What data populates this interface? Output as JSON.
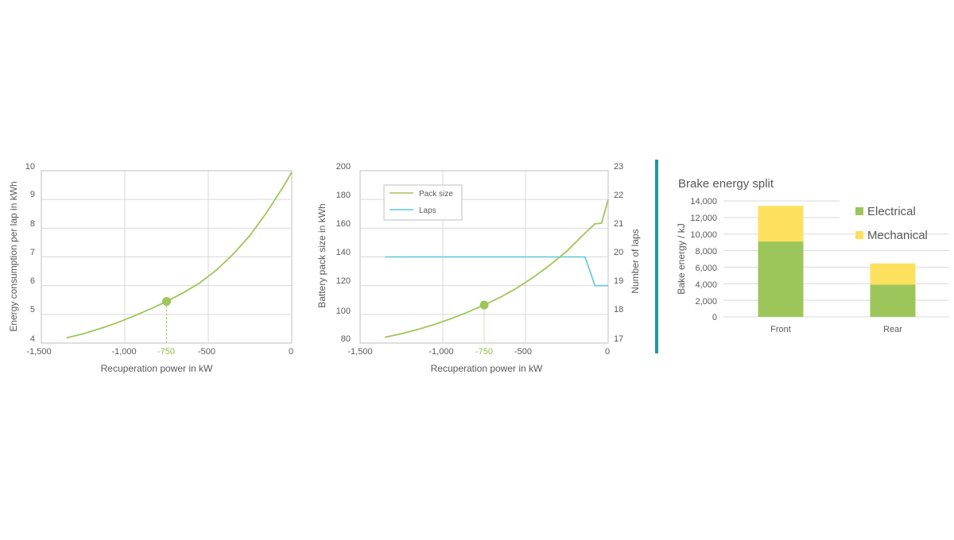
{
  "colors": {
    "green": "#9dc65a",
    "cyan": "#5bc8d9",
    "yellow": "#fde05e",
    "divider": "#1f97a6",
    "grid": "#d9d9d9",
    "highlight_text": "#8fbf45"
  },
  "chart_data": [
    {
      "type": "line",
      "xlabel": "Recuperation power in kW",
      "ylabel": "Energy consumption per lap in kWh",
      "xlim": [
        -1500,
        0
      ],
      "ylim": [
        4,
        10
      ],
      "x_ticks": [
        "-1,500",
        "-1,000",
        "-750",
        "-500",
        "0"
      ],
      "y_ticks": [
        "4",
        "5",
        "6",
        "7",
        "8",
        "9",
        "10"
      ],
      "series": [
        {
          "x": [
            -1350,
            -1250,
            -1150,
            -1050,
            -950,
            -850,
            -750,
            -650,
            -550,
            -450,
            -350,
            -250,
            -150,
            -50,
            0
          ],
          "y": [
            4.18,
            4.32,
            4.5,
            4.7,
            4.93,
            5.18,
            5.45,
            5.75,
            6.1,
            6.55,
            7.1,
            7.75,
            8.55,
            9.45,
            9.95
          ]
        }
      ],
      "marker": {
        "x": -750,
        "y": 5.45
      }
    },
    {
      "type": "line",
      "xlabel": "Recuperation power in kW",
      "ylabel": "Battery pack size in kWh",
      "y2label": "Number of laps",
      "xlim": [
        -1500,
        0
      ],
      "ylim": [
        80,
        200
      ],
      "y2lim": [
        17,
        23
      ],
      "x_ticks": [
        "-1,500",
        "-1,000",
        "-750",
        "-500",
        "0"
      ],
      "y_ticks": [
        "80",
        "100",
        "120",
        "140",
        "160",
        "180",
        "200"
      ],
      "y2_ticks": [
        "17",
        "18",
        "19",
        "20",
        "21",
        "22",
        "23"
      ],
      "legend": [
        "Pack size",
        "Laps"
      ],
      "series": [
        {
          "name": "Pack size",
          "axis": "left",
          "x": [
            -1350,
            -1250,
            -1150,
            -1050,
            -950,
            -850,
            -750,
            -650,
            -550,
            -450,
            -350,
            -250,
            -150,
            -80,
            -40,
            0
          ],
          "y": [
            84,
            86.5,
            89.5,
            93,
            97,
            101.5,
            106.5,
            112,
            118.5,
            126,
            134.5,
            144,
            155.5,
            163,
            163.5,
            180
          ]
        },
        {
          "name": "Laps",
          "axis": "right",
          "x": [
            -1350,
            -1000,
            -500,
            -140,
            -80,
            0
          ],
          "y": [
            20,
            20,
            20,
            20,
            19,
            19
          ]
        }
      ],
      "marker": {
        "x": -750,
        "y": 106.5
      }
    },
    {
      "type": "bar",
      "stacked": true,
      "title": "Brake energy split",
      "ylabel": "Bake energy / kJ",
      "ylim": [
        0,
        14000
      ],
      "y_ticks": [
        "0",
        "2,000",
        "4,000",
        "6,000",
        "8,000",
        "10,000",
        "12,000",
        "14,000"
      ],
      "categories": [
        "Front",
        "Rear"
      ],
      "series": [
        {
          "name": "Electrical",
          "values": [
            9100,
            3900
          ]
        },
        {
          "name": "Mechanical",
          "values": [
            4300,
            2550
          ]
        }
      ],
      "legend_position": "top-right"
    }
  ]
}
